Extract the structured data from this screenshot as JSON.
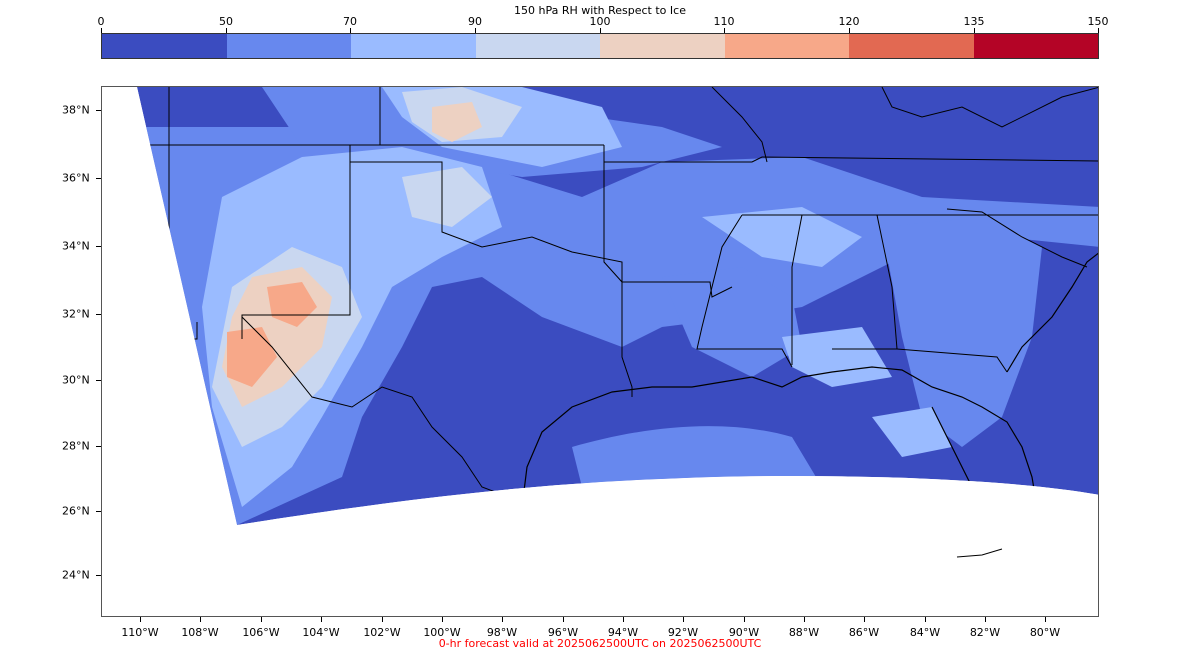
{
  "colorbar": {
    "title": "150 hPa RH with Respect to Ice",
    "ticks": [
      "0",
      "50",
      "70",
      "90",
      "100",
      "110",
      "120",
      "135",
      "150"
    ],
    "colors": [
      "#3b4cc0",
      "#6788ee",
      "#9abbff",
      "#c9d7f0",
      "#edd1c2",
      "#f7a889",
      "#e26952",
      "#b40426"
    ]
  },
  "map": {
    "lat_labels": [
      "38°N",
      "36°N",
      "34°N",
      "32°N",
      "30°N",
      "28°N",
      "26°N",
      "24°N"
    ],
    "lon_labels": [
      "110°W",
      "108°W",
      "106°W",
      "104°W",
      "102°W",
      "100°W",
      "98°W",
      "96°W",
      "94°W",
      "92°W",
      "90°W",
      "88°W",
      "86°W",
      "84°W",
      "82°W",
      "80°W"
    ],
    "border_color": "#000000"
  },
  "footer": {
    "text": "0-hr forecast valid at 2025062500UTC on 2025062500UTC",
    "color": "#ff0000"
  }
}
